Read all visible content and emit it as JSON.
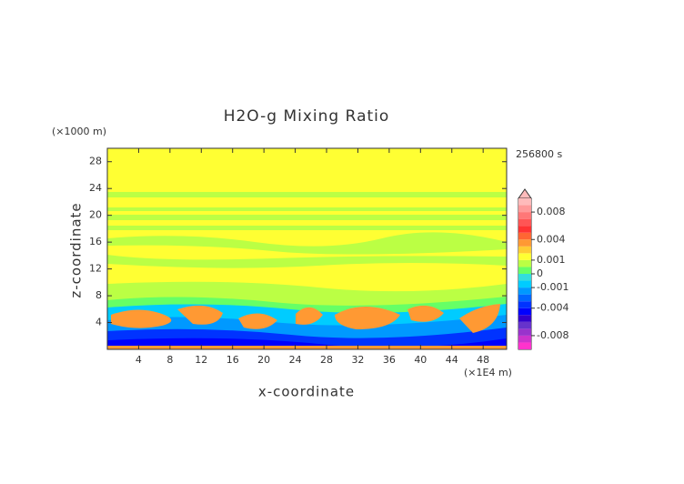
{
  "chart_data": {
    "type": "contour",
    "title": "H2O-g Mixing Ratio",
    "x_label": "x-coordinate",
    "y_label": "z-coordinate",
    "x_unit": "(×1E4 m)",
    "y_unit": "(×1000 m)",
    "time_label": "256800 s",
    "xlim": [
      0,
      51
    ],
    "ylim": [
      0,
      30
    ],
    "xticks": [
      4,
      8,
      12,
      16,
      20,
      24,
      28,
      32,
      36,
      40,
      44,
      48
    ],
    "yticks": [
      4,
      8,
      12,
      16,
      20,
      24,
      28
    ],
    "colorbar": {
      "levels": [
        -0.01,
        -0.009,
        -0.008,
        -0.007,
        -0.006,
        -0.005,
        -0.004,
        -0.003,
        -0.002,
        -0.001,
        -0.0005,
        0,
        0.0005,
        0.001,
        0.002,
        0.003,
        0.004,
        0.005,
        0.006,
        0.007,
        0.008,
        0.009,
        0.01
      ],
      "colors": [
        "#ff33cc",
        "#cc33cc",
        "#9933cc",
        "#6633cc",
        "#3300cc",
        "#0000ff",
        "#0033ff",
        "#0066ff",
        "#0099ff",
        "#00ccff",
        "#33dddd",
        "#66ff66",
        "#bbff44",
        "#ffff33",
        "#ffcc33",
        "#ff9933",
        "#ff6633",
        "#ff3333",
        "#ff5555",
        "#ff7777",
        "#ff9999",
        "#ffbbbb"
      ],
      "ticks": [
        {
          "value": -0.008,
          "label": "-0.008"
        },
        {
          "value": -0.004,
          "label": "-0.004"
        },
        {
          "value": -0.001,
          "label": "-0.001"
        },
        0,
        0.001,
        0.004,
        0.008
      ]
    }
  }
}
